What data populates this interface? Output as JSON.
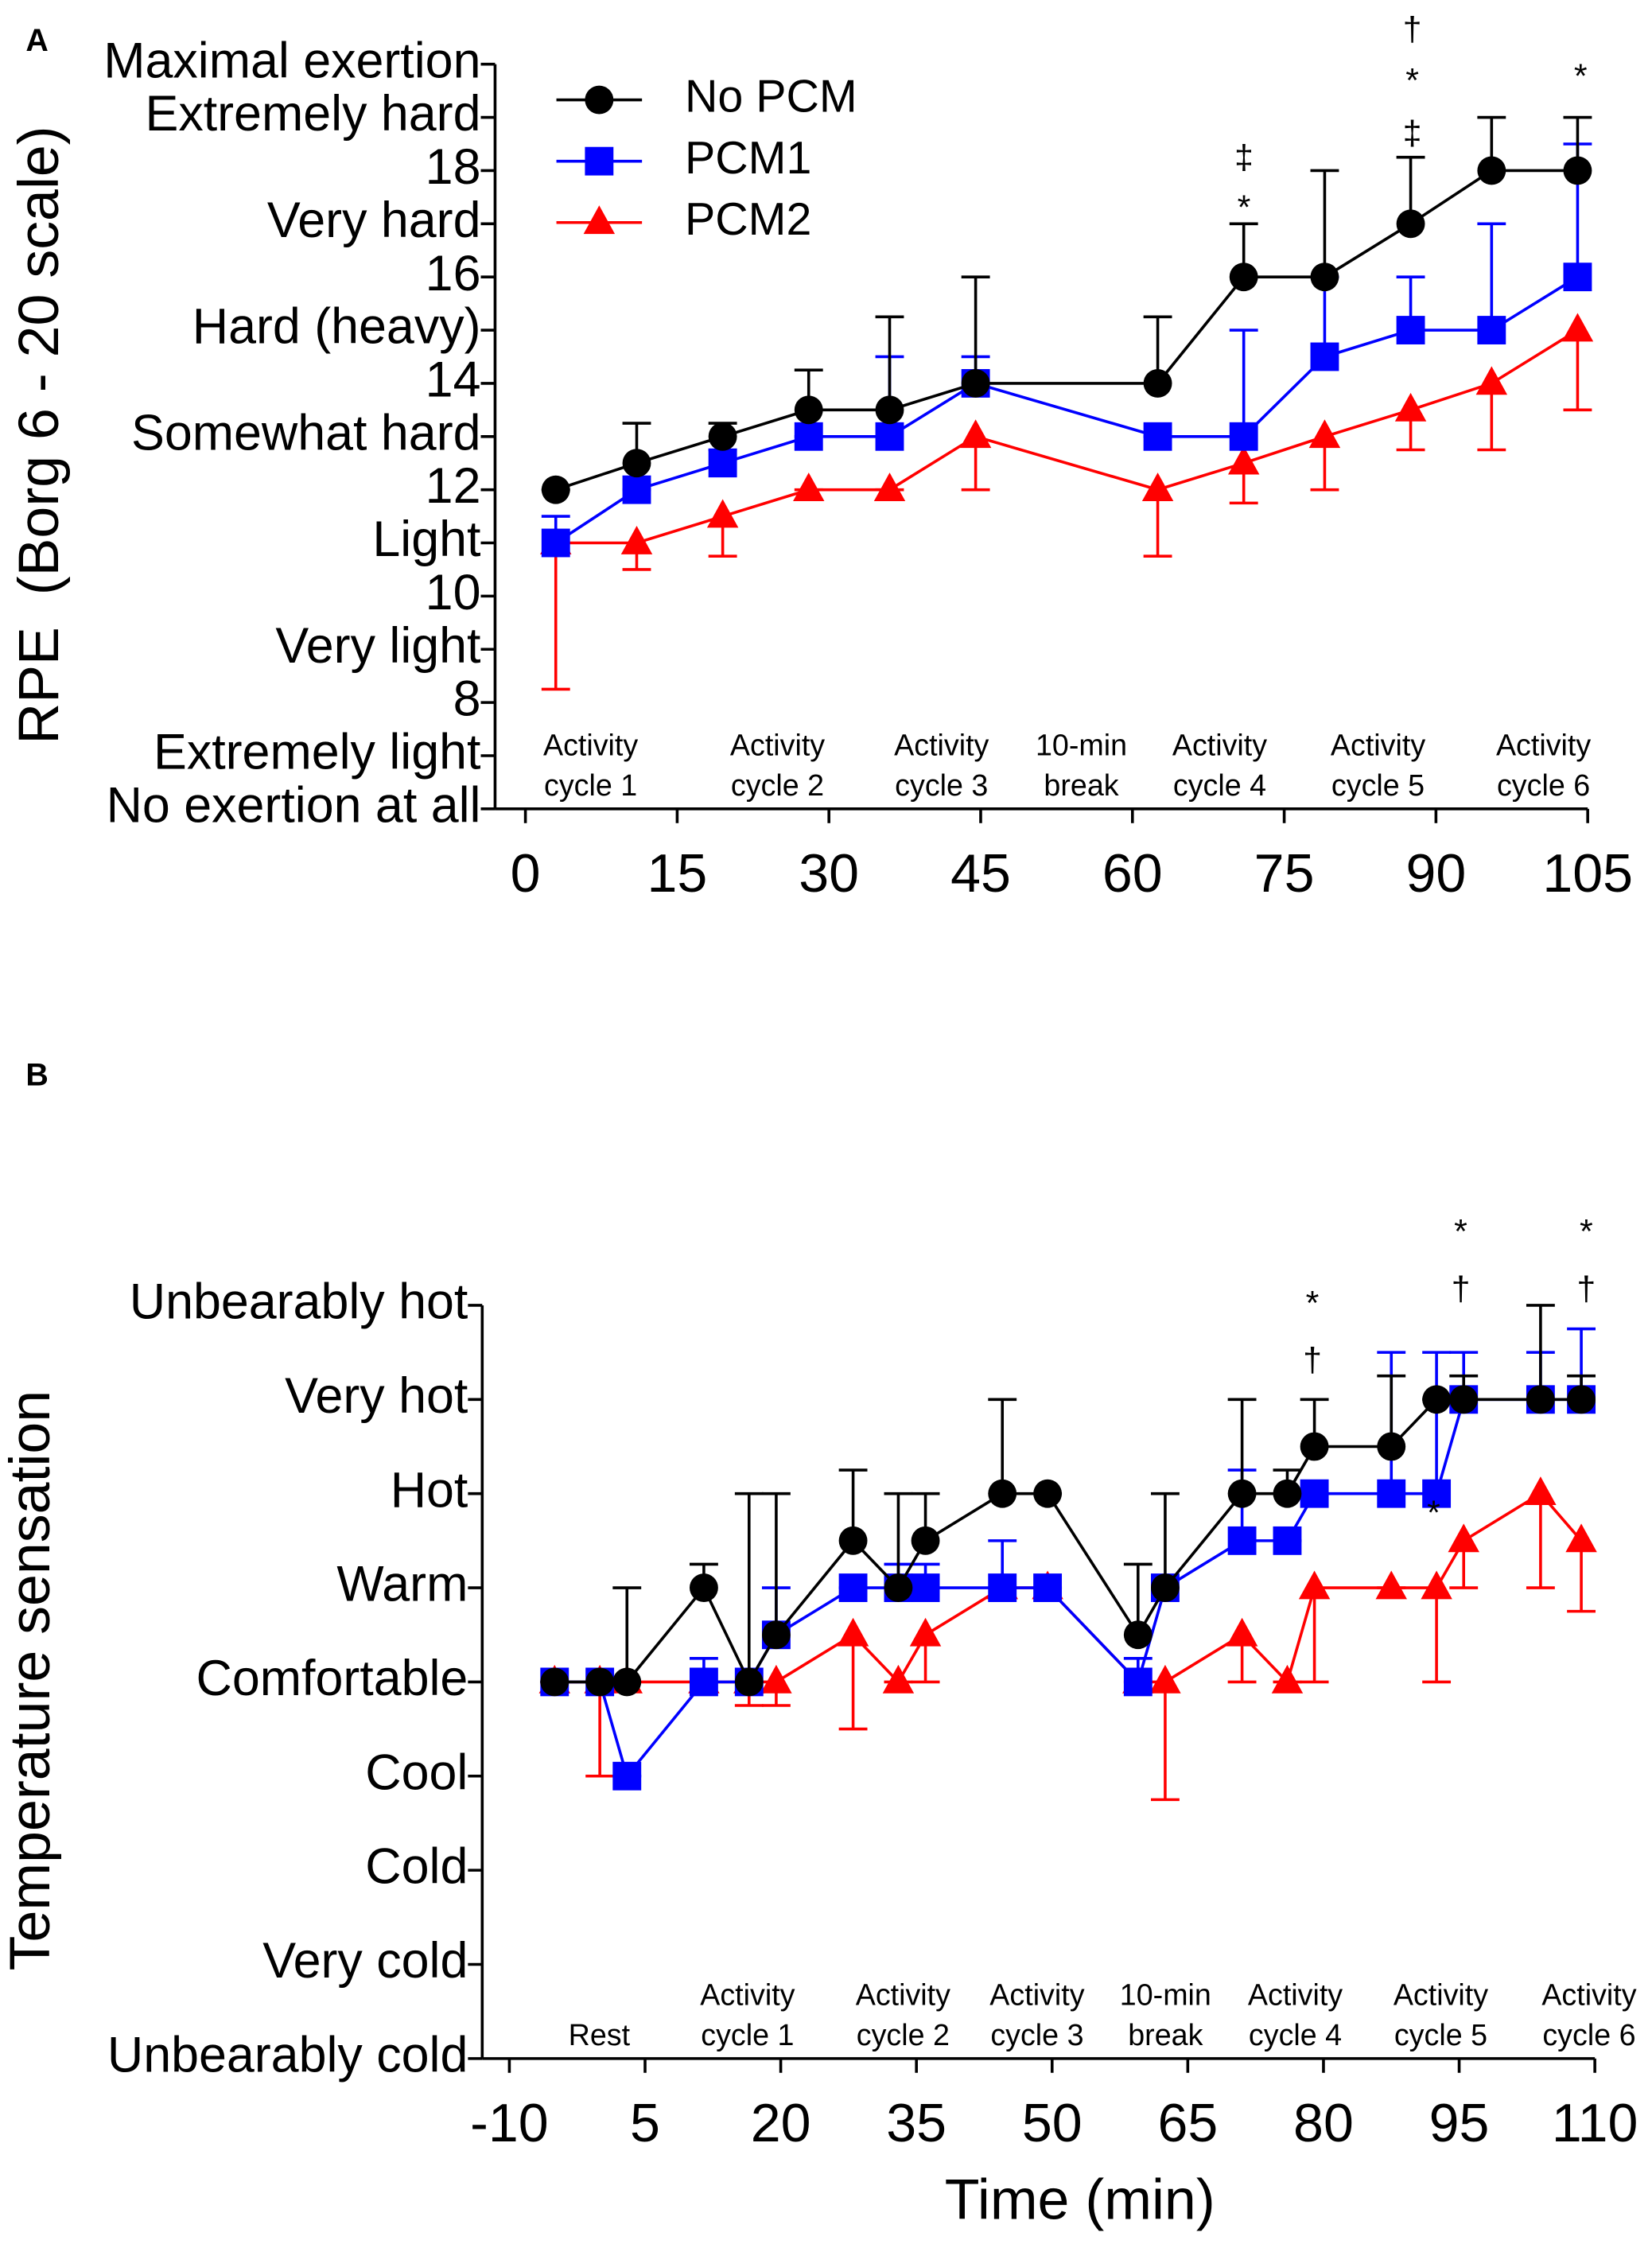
{
  "chart_data": [
    {
      "type": "line",
      "label": "A",
      "ylabel": "RPE  (Borg 6 - 20 scale)",
      "legend": "upper left",
      "xlim": [
        -3,
        105
      ],
      "xticks": [
        0,
        15,
        30,
        45,
        60,
        75,
        90,
        105
      ],
      "ylim": [
        6,
        20
      ],
      "yticks": [
        {
          "value": 6,
          "label": "No exertion at all"
        },
        {
          "value": 7,
          "label": "Extremely light"
        },
        8,
        {
          "value": 9,
          "label": "Very light"
        },
        10,
        {
          "value": 11,
          "label": "Light"
        },
        12,
        {
          "value": 13,
          "label": "Somewhat hard"
        },
        14,
        {
          "value": 15,
          "label": "Hard (heavy)"
        },
        16,
        {
          "value": 17,
          "label": "Very hard"
        },
        18,
        {
          "value": 19,
          "label": "Extremely hard"
        },
        {
          "value": 20,
          "label": "Maximal exertion"
        }
      ],
      "x": [
        3,
        11,
        19.5,
        28,
        36,
        44.5,
        62.5,
        71,
        79,
        87.5,
        95.5,
        104
      ],
      "series": [
        {
          "name": "No PCM",
          "color": "#000000",
          "marker": "circle",
          "error_side": "up",
          "values": [
            12,
            12.5,
            13,
            13.5,
            13.5,
            14,
            14,
            16,
            16,
            17,
            18,
            18
          ],
          "errors": [
            0,
            0.75,
            0.25,
            0.75,
            1.75,
            2,
            1.25,
            1,
            2,
            1.25,
            1,
            1
          ]
        },
        {
          "name": "PCM1",
          "color": "#0000ff",
          "marker": "square",
          "error_side": "up",
          "values": [
            11,
            12,
            12.5,
            13,
            13,
            14,
            13,
            13,
            14.5,
            15,
            15,
            16
          ],
          "errors": [
            0.5,
            0,
            0.25,
            0,
            1.5,
            0.5,
            0,
            2,
            1.5,
            1,
            2,
            2.5
          ]
        },
        {
          "name": "PCM2",
          "color": "#ff0000",
          "marker": "triangle",
          "error_side": "down",
          "values": [
            11,
            11,
            11.5,
            12,
            12,
            13,
            12,
            12.5,
            13,
            13.5,
            14,
            15
          ],
          "errors": [
            2.75,
            0.5,
            0.75,
            0,
            0,
            1,
            1.25,
            0.75,
            1,
            0.75,
            1.25,
            1.5
          ]
        }
      ],
      "annotations": [
        "‡",
        "*",
        "†",
        "*",
        "‡",
        "*"
      ],
      "phases": [
        [
          "Activity",
          "cycle 1"
        ],
        [
          "Activity",
          "cycle 2"
        ],
        [
          "Activity",
          "cycle 3"
        ],
        [
          "10-min",
          "break"
        ],
        [
          "Activity",
          "cycle 4"
        ],
        [
          "Activity",
          "cycle 5"
        ],
        [
          "Activity",
          "cycle 6"
        ]
      ]
    },
    {
      "type": "line",
      "label": "B",
      "ylabel": "Temperature sensation",
      "xlabel": "Time (min)",
      "xlim": [
        -13,
        110
      ],
      "xticks": [
        -10,
        5,
        20,
        35,
        50,
        65,
        80,
        95,
        110
      ],
      "ylim": [
        -4,
        4
      ],
      "yticks": [
        {
          "value": -4,
          "label": "Unbearably cold"
        },
        {
          "value": -3,
          "label": "Very cold"
        },
        {
          "value": -2,
          "label": "Cold"
        },
        {
          "value": -1,
          "label": "Cool"
        },
        {
          "value": 0,
          "label": "Comfortable"
        },
        {
          "value": 1,
          "label": "Warm"
        },
        {
          "value": 2,
          "label": "Hot"
        },
        {
          "value": 3,
          "label": "Very hot"
        },
        {
          "value": 4,
          "label": "Unbearably hot"
        }
      ],
      "x": [
        -5,
        0,
        3,
        11.5,
        16.5,
        19.5,
        28,
        33,
        36,
        44.5,
        49.5,
        59.5,
        62.5,
        71,
        76,
        79,
        87.5,
        92.5,
        95.5,
        104,
        108.5
      ],
      "series": [
        {
          "color": "#000000",
          "marker": "circle",
          "error_side": "up",
          "values": [
            0,
            0,
            0,
            1,
            0,
            0.5,
            1.5,
            1,
            1.5,
            2,
            2,
            0.5,
            1,
            2,
            2,
            2.5,
            2.5,
            3,
            3,
            3,
            3
          ],
          "errors": [
            0,
            0,
            1,
            0.25,
            2,
            1.5,
            0.75,
            1,
            0.5,
            1,
            0,
            0.75,
            1,
            1,
            0.25,
            0.5,
            0.75,
            0,
            0.25,
            1,
            0.25
          ]
        },
        {
          "color": "#0000ff",
          "marker": "square",
          "error_side": "up",
          "values": [
            0,
            0,
            -1,
            0,
            0,
            0.5,
            1,
            1,
            1,
            1,
            1,
            0,
            1,
            1.5,
            1.5,
            2,
            2,
            2,
            3,
            3,
            3
          ],
          "errors": [
            0,
            0,
            0,
            0.25,
            0,
            0.5,
            0,
            0.25,
            0.25,
            0.5,
            0,
            0.25,
            0,
            0.75,
            0,
            0,
            1.5,
            1.5,
            0.5,
            0.5,
            0.75
          ]
        },
        {
          "color": "#ff0000",
          "marker": "triangle",
          "error_side": "down",
          "values": [
            0,
            0,
            0,
            0,
            0,
            0,
            0.5,
            0,
            0.5,
            1,
            1,
            0,
            0,
            0.5,
            0,
            1,
            1,
            1,
            1.5,
            2,
            1.5
          ],
          "errors": [
            0,
            1,
            0,
            0,
            0.25,
            0.25,
            1,
            0,
            0.5,
            0,
            0,
            0,
            1.25,
            0.5,
            0,
            1,
            0,
            1,
            0.5,
            1,
            0.75
          ]
        }
      ],
      "annotations": [
        "*",
        "†",
        "*",
        "†",
        "*",
        "†",
        "*"
      ],
      "phases": [
        [
          "Rest"
        ],
        [
          "Activity",
          "cycle 1"
        ],
        [
          "Activity",
          "cycle 2"
        ],
        [
          "Activity",
          "cycle 3"
        ],
        [
          "10-min",
          "break"
        ],
        [
          "Activity",
          "cycle 4"
        ],
        [
          "Activity",
          "cycle 5"
        ],
        [
          "Activity",
          "cycle 6"
        ]
      ]
    }
  ]
}
